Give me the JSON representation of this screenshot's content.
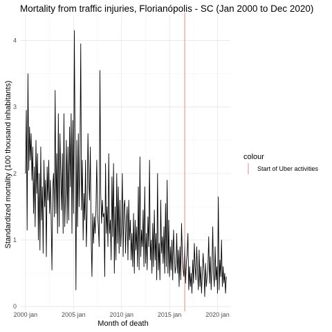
{
  "chart_data": {
    "type": "line",
    "title": "Mortality from traffic injuries, Florianópolis - SC (Jan 2000 to Dec 2020)",
    "xlabel": "Month of death",
    "ylabel": "Standardized mortality (100 thousand inhabitants)",
    "x_start": "2000-01",
    "x_end": "2020-12",
    "xlim": [
      "1999-07",
      "2021-05"
    ],
    "ylim": [
      -0.05,
      4.38
    ],
    "x_ticks": [
      "2000-01",
      "2005-01",
      "2010-01",
      "2015-01",
      "2020-01"
    ],
    "x_tick_labels": [
      "2000 jan",
      "2005 jan",
      "2010 jan",
      "2015 jan",
      "2020 jan"
    ],
    "y_ticks": [
      0,
      1,
      2,
      3,
      4
    ],
    "y_tick_labels": [
      "0",
      "1",
      "2",
      "3",
      "4"
    ],
    "grid": true,
    "series": [
      {
        "color": "#000000",
        "values": [
          2.0,
          2.95,
          1.15,
          3.5,
          2.05,
          2.7,
          2.2,
          2.6,
          1.9,
          2.4,
          1.4,
          2.1,
          1.2,
          2.5,
          1.7,
          2.3,
          1.0,
          2.0,
          0.85,
          2.4,
          1.3,
          1.8,
          0.8,
          2.2,
          1.5,
          1.9,
          0.75,
          2.1,
          1.6,
          2.2,
          1.4,
          1.9,
          1.3,
          0.55,
          1.8,
          2.0,
          1.35,
          3.25,
          1.4,
          2.3,
          1.1,
          2.9,
          1.2,
          2.6,
          2.0,
          1.45,
          2.3,
          1.1,
          2.9,
          1.2,
          1.7,
          2.5,
          1.25,
          2.4,
          1.3,
          2.7,
          1.8,
          2.9,
          1.1,
          2.8,
          1.4,
          4.15,
          2.3,
          0.25,
          2.5,
          1.2,
          2.6,
          1.5,
          2.2,
          3.95,
          1.45,
          2.2,
          1.0,
          1.7,
          1.3,
          2.2,
          0.9,
          1.4,
          2.6,
          1.9,
          1.6,
          2.4,
          1.05,
          0.45,
          1.4,
          0.95,
          1.35,
          1.1,
          1.45,
          2.2,
          1.4,
          1.2,
          0.9,
          3.55,
          1.7,
          1.25,
          1.6,
          1.35,
          1.4,
          0.45,
          2.15,
          1.1,
          1.5,
          0.9,
          2.3,
          1.1,
          1.3,
          0.7,
          1.95,
          1.05,
          2.15,
          0.5,
          1.5,
          0.7,
          2.0,
          0.95,
          1.8,
          0.8,
          1.6,
          0.9,
          1.2,
          2.0,
          0.75,
          1.5,
          1.6,
          0.8,
          1.25,
          1.5,
          0.7,
          1.6,
          1.0,
          1.3,
          0.7,
          1.1,
          0.6,
          1.4,
          0.5,
          1.3,
          0.85,
          1.2,
          0.6,
          1.8,
          0.55,
          2.25,
          0.75,
          1.15,
          0.9,
          1.45,
          0.6,
          1.8,
          0.65,
          1.1,
          0.55,
          1.35,
          0.9,
          2.2,
          0.7,
          1.0,
          0.5,
          1.25,
          0.6,
          1.45,
          0.7,
          1.1,
          0.4,
          2.0,
          0.55,
          0.95,
          0.4,
          1.6,
          0.8,
          1.05,
          0.65,
          1.2,
          0.5,
          1.55,
          0.6,
          1.9,
          0.5,
          1.3,
          0.45,
          0.9,
          0.55,
          1.0,
          0.4,
          1.15,
          0.8,
          0.5,
          0.6,
          1.1,
          0.5,
          0.85,
          0.3,
          0.9,
          0.4,
          1.25,
          0.8,
          0.55,
          0.45,
          1.0,
          0.35,
          0.65,
          0.8,
          1.1,
          0.25,
          0.6,
          0.3,
          0.5,
          0.2,
          0.7,
          0.35,
          0.95,
          0.6,
          0.4,
          0.9,
          0.55,
          0.25,
          0.85,
          0.3,
          0.6,
          0.2,
          0.5,
          0.8,
          0.55,
          0.15,
          0.65,
          0.3,
          0.45,
          0.6,
          1.05,
          0.35,
          0.75,
          0.25,
          0.55,
          1.2,
          0.5,
          0.3,
          0.9,
          0.4,
          0.6,
          0.2,
          1.65,
          0.25,
          0.7,
          0.45,
          1.0,
          0.3,
          0.6,
          0.35,
          0.5,
          0.2,
          0.45
        ]
      }
    ],
    "events": [
      {
        "date": "2016-08",
        "label": "Start of Uber activities",
        "color": "#d98c8c"
      }
    ],
    "legend": {
      "title": "colour",
      "placement": "right",
      "items": [
        {
          "label": "Start of Uber activities",
          "color": "#d98c8c"
        }
      ]
    }
  }
}
